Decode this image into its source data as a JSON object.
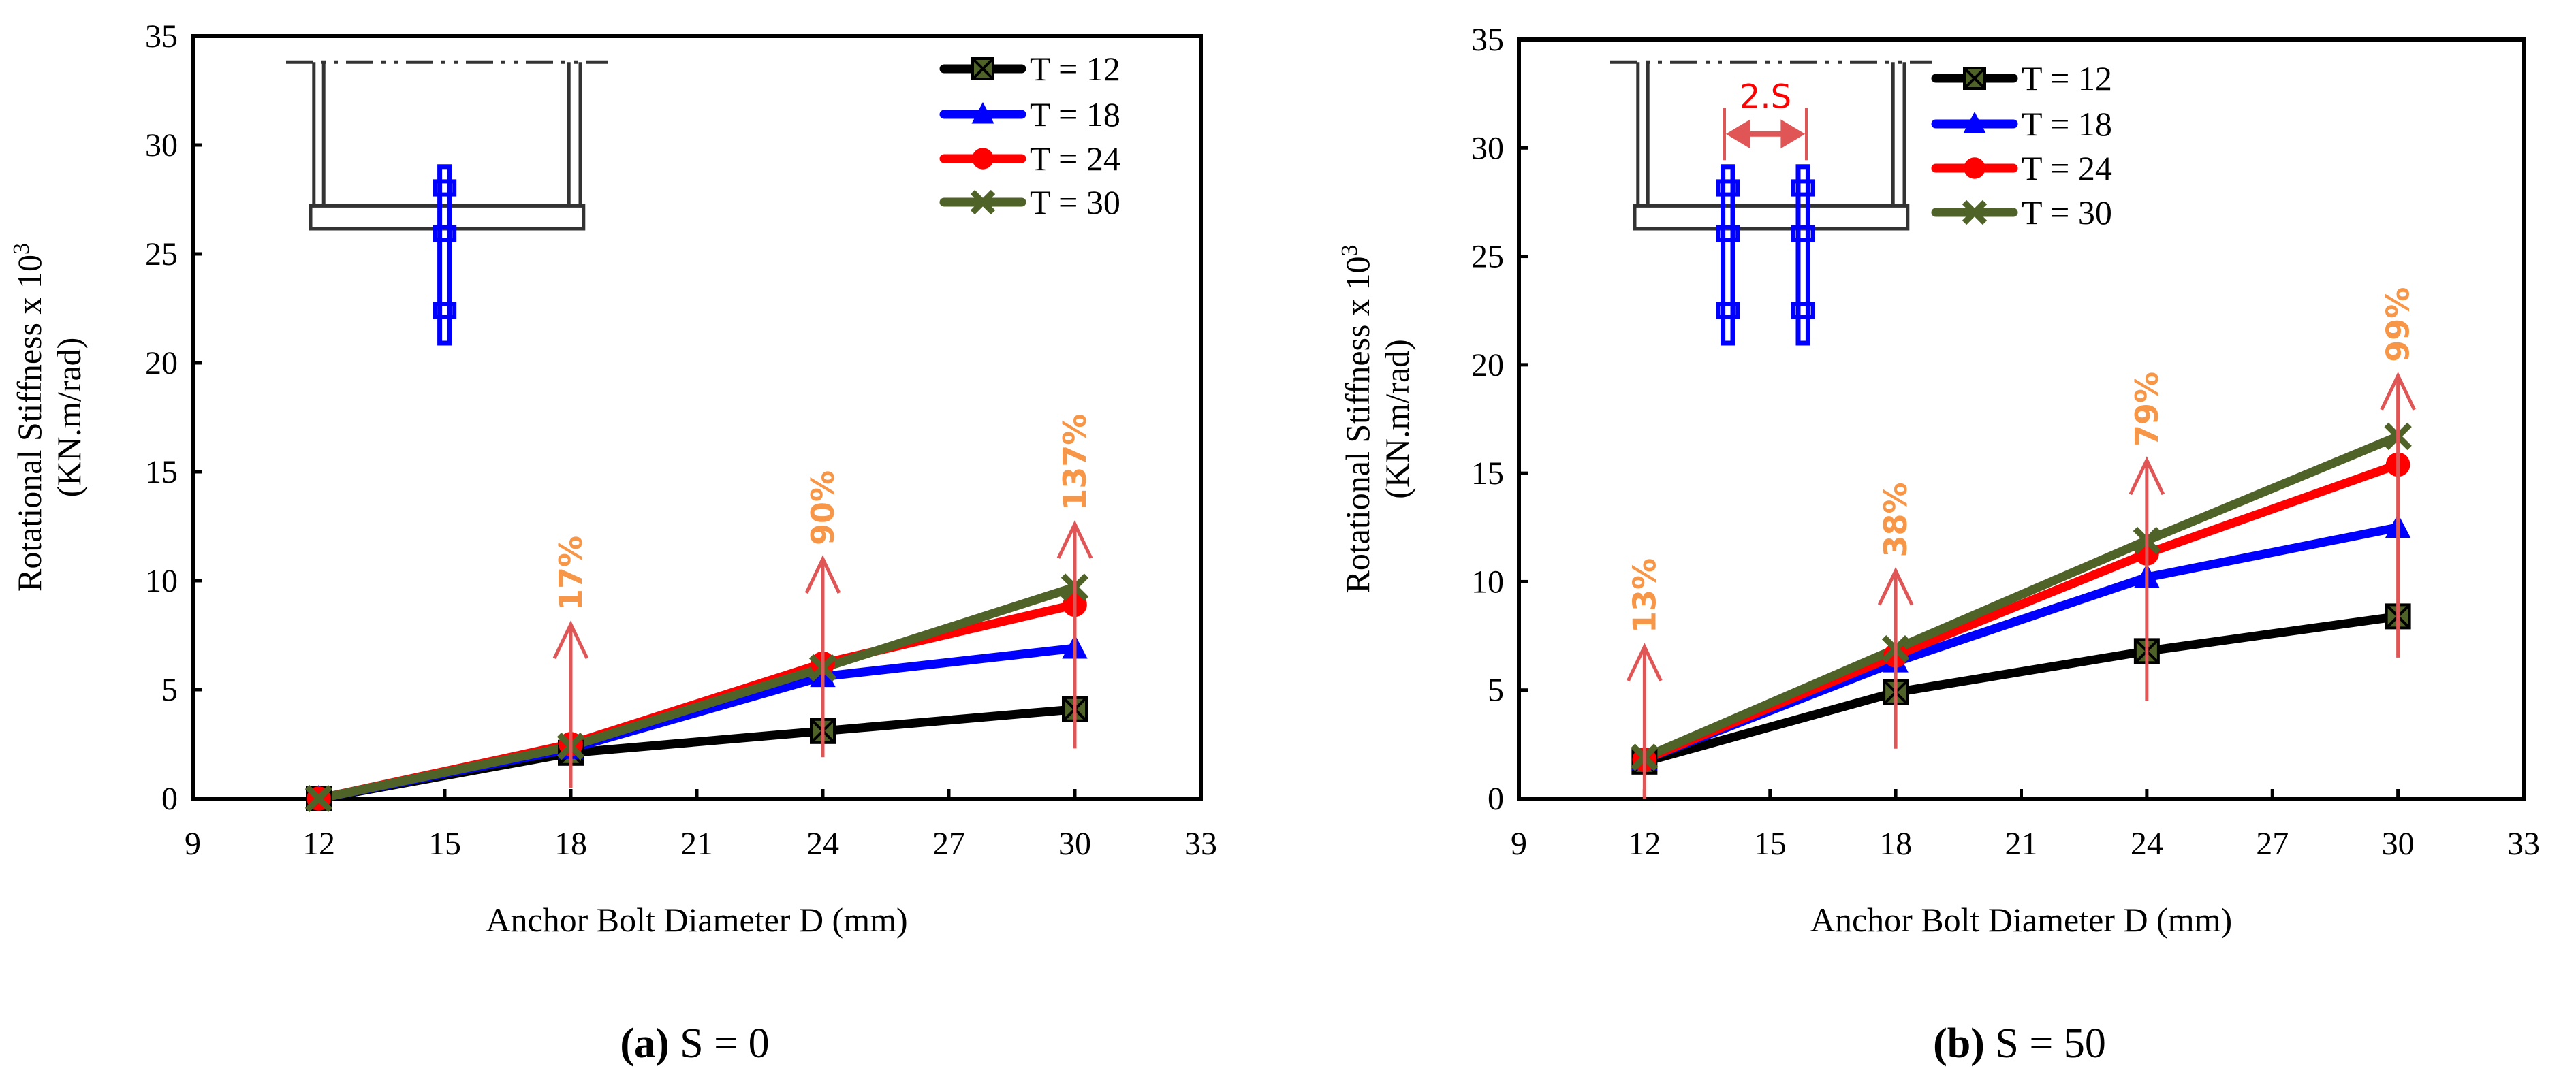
{
  "colors": {
    "t12": "#000000",
    "t18": "#0000ff",
    "t24": "#ff0000",
    "t30": "#4f6228",
    "arrow": "#e05555",
    "pct": "#f79646",
    "inset_bolt": "#0000ff",
    "inset_dim": "#e05555"
  },
  "chart_data": [
    {
      "type": "line",
      "caption_letter": "(a)",
      "caption_text": " S = 0",
      "xlabel": "Anchor Bolt Diameter D (mm)",
      "ylabel_line1": "Rotational Stiffness x 10",
      "ylabel_sup": "3",
      "ylabel_line2": "(KN.m/rad)",
      "xlim": [
        9,
        33
      ],
      "ylim": [
        0,
        35
      ],
      "xticks": [
        "9",
        "12",
        "15",
        "18",
        "21",
        "24",
        "27",
        "30",
        "33"
      ],
      "yticks": [
        "0",
        "5",
        "10",
        "15",
        "20",
        "25",
        "30",
        "35"
      ],
      "x": [
        12,
        18,
        24,
        30
      ],
      "legend_position": "top-right",
      "series": [
        {
          "name": "T = 12",
          "values": [
            0.0,
            2.1,
            3.1,
            4.1
          ],
          "marker": "square-x"
        },
        {
          "name": "T = 18",
          "values": [
            0.0,
            2.3,
            5.6,
            6.9
          ],
          "marker": "triangle"
        },
        {
          "name": "T = 24",
          "values": [
            0.0,
            2.5,
            6.2,
            8.9
          ],
          "marker": "circle"
        },
        {
          "name": "T = 30",
          "values": [
            0.0,
            2.4,
            6.0,
            9.7
          ],
          "marker": "x"
        }
      ],
      "annotations": [
        {
          "label": "17%",
          "x": 18,
          "from": 0.5,
          "to": 8.0
        },
        {
          "label": "90%",
          "x": 24,
          "from": 1.9,
          "to": 11.0
        },
        {
          "label": "137%",
          "x": 30,
          "from": 2.3,
          "to": 12.6
        }
      ],
      "inset_label": ""
    },
    {
      "type": "line",
      "caption_letter": "(b)",
      "caption_text": " S = 50",
      "xlabel": "Anchor Bolt Diameter D (mm)",
      "ylabel_line1": "Rotational Stiffness x 10",
      "ylabel_sup": "3",
      "ylabel_line2": "(KN.m/rad)",
      "xlim": [
        9,
        33
      ],
      "ylim": [
        0,
        35
      ],
      "xticks": [
        "9",
        "12",
        "15",
        "18",
        "21",
        "24",
        "27",
        "30",
        "33"
      ],
      "yticks": [
        "0",
        "5",
        "10",
        "15",
        "20",
        "25",
        "30",
        "35"
      ],
      "x": [
        12,
        18,
        24,
        30
      ],
      "legend_position": "top-right",
      "series": [
        {
          "name": "T = 12",
          "values": [
            1.7,
            4.9,
            6.8,
            8.4
          ],
          "marker": "square-x"
        },
        {
          "name": "T = 18",
          "values": [
            1.8,
            6.3,
            10.2,
            12.5
          ],
          "marker": "triangle"
        },
        {
          "name": "T = 24",
          "values": [
            1.8,
            6.6,
            11.3,
            15.4
          ],
          "marker": "circle"
        },
        {
          "name": "T = 30",
          "values": [
            1.9,
            6.9,
            11.9,
            16.7
          ],
          "marker": "x"
        }
      ],
      "annotations": [
        {
          "label": "13%",
          "x": 12,
          "from": 0.0,
          "to": 7.0
        },
        {
          "label": "38%",
          "x": 18,
          "from": 2.3,
          "to": 10.5
        },
        {
          "label": "79%",
          "x": 24,
          "from": 4.5,
          "to": 15.6
        },
        {
          "label": "99%",
          "x": 30,
          "from": 6.5,
          "to": 19.5
        }
      ],
      "inset_label": "2.S"
    }
  ]
}
